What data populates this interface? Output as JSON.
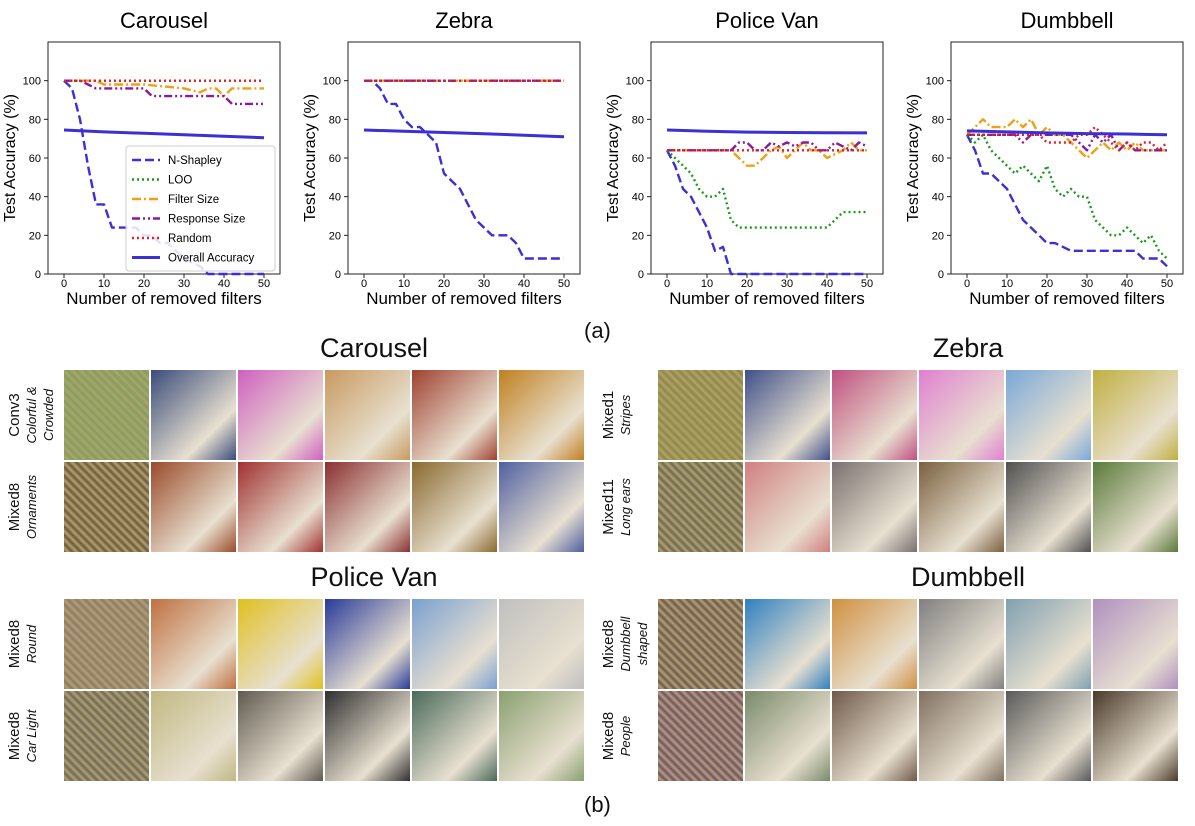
{
  "chart_data": [
    {
      "type": "line",
      "title": "Carousel",
      "xlabel": "Number of removed filters",
      "ylabel": "Test Accuracy (%)",
      "xlim": [
        -4,
        54
      ],
      "ylim": [
        0,
        120
      ],
      "xticks": [
        0,
        10,
        20,
        30,
        40,
        50
      ],
      "yticks": [
        0,
        20,
        40,
        60,
        80,
        100
      ],
      "legend": "lower-right",
      "series": [
        {
          "name": "N-Shapley",
          "style": "dashed",
          "color": "#3b2fd6",
          "x": [
            0,
            2,
            4,
            6,
            8,
            10,
            12,
            14,
            16,
            18,
            20,
            22,
            24,
            26,
            28,
            30,
            32,
            34,
            36,
            38,
            40,
            42,
            44,
            46,
            48,
            50
          ],
          "y": [
            100,
            96,
            80,
            56,
            36,
            36,
            24,
            24,
            24,
            24,
            20,
            20,
            16,
            16,
            12,
            8,
            6,
            4,
            0,
            0,
            0,
            0,
            0,
            0,
            0,
            0
          ]
        },
        {
          "name": "LOO",
          "style": "dotted",
          "color": "#1a9a1a",
          "x": [
            0,
            50
          ],
          "y": [
            100,
            100
          ]
        },
        {
          "name": "Filter Size",
          "style": "dashdot",
          "color": "#f0a010",
          "x": [
            0,
            2,
            4,
            6,
            8,
            10,
            20,
            30,
            34,
            36,
            38,
            40,
            42,
            44,
            46,
            48,
            50
          ],
          "y": [
            100,
            100,
            100,
            100,
            100,
            98,
            98,
            96,
            94,
            96,
            96,
            92,
            96,
            96,
            96,
            96,
            96
          ]
        },
        {
          "name": "Response Size",
          "style": "dashdotdot",
          "color": "#8a1a9a",
          "x": [
            0,
            4,
            6,
            8,
            10,
            20,
            22,
            24,
            26,
            30,
            36,
            40,
            42,
            44,
            46,
            48,
            50
          ],
          "y": [
            100,
            100,
            98,
            96,
            96,
            96,
            92,
            92,
            92,
            92,
            92,
            92,
            88,
            88,
            88,
            88,
            88
          ]
        },
        {
          "name": "Random",
          "style": "dotted",
          "color": "#e0202a",
          "x": [
            0,
            50
          ],
          "y": [
            100,
            100
          ]
        },
        {
          "name": "Overall Accuracy",
          "style": "solid",
          "color": "#3b2fd6",
          "x": [
            0,
            10,
            20,
            30,
            40,
            50
          ],
          "y": [
            74.5,
            73.5,
            72.8,
            72,
            71.2,
            70.5
          ]
        }
      ]
    },
    {
      "type": "line",
      "title": "Zebra",
      "xlabel": "Number of removed filters",
      "ylabel": "Test Accuracy (%)",
      "xlim": [
        -4,
        54
      ],
      "ylim": [
        0,
        120
      ],
      "xticks": [
        0,
        10,
        20,
        30,
        40,
        50
      ],
      "yticks": [
        0,
        20,
        40,
        60,
        80,
        100
      ],
      "series": [
        {
          "name": "N-Shapley",
          "style": "dashed",
          "color": "#3b2fd6",
          "x": [
            0,
            2,
            4,
            6,
            8,
            10,
            12,
            14,
            16,
            18,
            20,
            22,
            24,
            26,
            28,
            30,
            32,
            34,
            36,
            38,
            40,
            42,
            44,
            46,
            48,
            50
          ],
          "y": [
            100,
            100,
            96,
            88,
            88,
            80,
            76,
            76,
            72,
            68,
            52,
            48,
            44,
            36,
            28,
            24,
            20,
            20,
            20,
            16,
            8,
            8,
            8,
            8,
            8,
            8
          ]
        },
        {
          "name": "LOO",
          "style": "dotted",
          "color": "#1a9a1a",
          "x": [
            0,
            50
          ],
          "y": [
            100,
            100
          ]
        },
        {
          "name": "Filter Size",
          "style": "dashdot",
          "color": "#f0a010",
          "x": [
            0,
            50
          ],
          "y": [
            100,
            100
          ]
        },
        {
          "name": "Response Size",
          "style": "dashdotdot",
          "color": "#8a1a9a",
          "x": [
            0,
            50
          ],
          "y": [
            100,
            100
          ]
        },
        {
          "name": "Random",
          "style": "dotted",
          "color": "#e0202a",
          "x": [
            0,
            50
          ],
          "y": [
            100,
            100
          ]
        },
        {
          "name": "Overall Accuracy",
          "style": "solid",
          "color": "#3b2fd6",
          "x": [
            0,
            10,
            20,
            30,
            40,
            50
          ],
          "y": [
            74.5,
            73.8,
            73.2,
            72.5,
            71.8,
            71
          ]
        }
      ]
    },
    {
      "type": "line",
      "title": "Police Van",
      "xlabel": "Number of removed filters",
      "ylabel": "Test Accuracy (%)",
      "xlim": [
        -4,
        54
      ],
      "ylim": [
        0,
        120
      ],
      "xticks": [
        0,
        10,
        20,
        30,
        40,
        50
      ],
      "yticks": [
        0,
        20,
        40,
        60,
        80,
        100
      ],
      "series": [
        {
          "name": "N-Shapley",
          "style": "dashed",
          "color": "#3b2fd6",
          "x": [
            0,
            2,
            4,
            6,
            8,
            10,
            12,
            14,
            16,
            18,
            20,
            30,
            40,
            50
          ],
          "y": [
            64,
            56,
            44,
            40,
            32,
            24,
            12,
            14,
            0,
            0,
            0,
            0,
            0,
            0
          ]
        },
        {
          "name": "LOO",
          "style": "dotted",
          "color": "#1a9a1a",
          "x": [
            0,
            2,
            4,
            6,
            8,
            10,
            12,
            14,
            16,
            18,
            20,
            30,
            40,
            42,
            44,
            46,
            48,
            50
          ],
          "y": [
            64,
            60,
            56,
            52,
            44,
            40,
            40,
            44,
            28,
            24,
            24,
            24,
            24,
            28,
            32,
            32,
            32,
            32
          ]
        },
        {
          "name": "Filter Size",
          "style": "dashdot",
          "color": "#f0a010",
          "x": [
            0,
            10,
            16,
            18,
            20,
            22,
            24,
            26,
            28,
            30,
            32,
            34,
            36,
            38,
            40,
            42,
            44,
            46,
            48,
            50
          ],
          "y": [
            64,
            64,
            64,
            60,
            56,
            56,
            60,
            64,
            66,
            60,
            64,
            68,
            64,
            64,
            60,
            62,
            64,
            68,
            64,
            64
          ]
        },
        {
          "name": "Response Size",
          "style": "dashdotdot",
          "color": "#8a1a9a",
          "x": [
            0,
            10,
            16,
            18,
            20,
            22,
            24,
            26,
            28,
            30,
            32,
            34,
            36,
            38,
            40,
            42,
            44,
            46,
            48,
            50
          ],
          "y": [
            64,
            64,
            64,
            68,
            68,
            64,
            64,
            68,
            66,
            68,
            66,
            68,
            68,
            64,
            64,
            68,
            66,
            64,
            68,
            66
          ]
        },
        {
          "name": "Random",
          "style": "dotted",
          "color": "#e0202a",
          "x": [
            0,
            50
          ],
          "y": [
            64,
            64
          ]
        },
        {
          "name": "Overall Accuracy",
          "style": "solid",
          "color": "#3b2fd6",
          "x": [
            0,
            10,
            20,
            30,
            40,
            50
          ],
          "y": [
            74.5,
            73.8,
            73.4,
            73.2,
            73.1,
            73
          ]
        }
      ]
    },
    {
      "type": "line",
      "title": "Dumbbell",
      "xlabel": "Number of removed filters",
      "ylabel": "Test Accuracy (%)",
      "xlim": [
        -4,
        54
      ],
      "ylim": [
        0,
        120
      ],
      "xticks": [
        0,
        10,
        20,
        30,
        40,
        50
      ],
      "yticks": [
        0,
        20,
        40,
        60,
        80,
        100
      ],
      "series": [
        {
          "name": "N-Shapley",
          "style": "dashed",
          "color": "#3b2fd6",
          "x": [
            0,
            2,
            4,
            6,
            8,
            10,
            12,
            14,
            16,
            18,
            20,
            22,
            24,
            26,
            28,
            30,
            32,
            34,
            36,
            38,
            40,
            42,
            44,
            46,
            48,
            50
          ],
          "y": [
            72,
            64,
            52,
            52,
            48,
            44,
            36,
            28,
            24,
            20,
            16,
            16,
            14,
            12,
            12,
            12,
            12,
            12,
            12,
            12,
            12,
            12,
            8,
            8,
            8,
            4
          ]
        },
        {
          "name": "LOO",
          "style": "dotted",
          "color": "#1a9a1a",
          "x": [
            0,
            2,
            4,
            6,
            8,
            10,
            12,
            14,
            16,
            18,
            20,
            22,
            24,
            26,
            28,
            30,
            32,
            34,
            36,
            38,
            40,
            42,
            44,
            46,
            48,
            50
          ],
          "y": [
            72,
            68,
            72,
            64,
            60,
            56,
            52,
            56,
            52,
            48,
            56,
            44,
            40,
            44,
            40,
            40,
            28,
            24,
            20,
            20,
            24,
            20,
            16,
            20,
            12,
            8
          ]
        },
        {
          "name": "Filter Size",
          "style": "dashdot",
          "color": "#f0a010",
          "x": [
            0,
            2,
            4,
            6,
            8,
            10,
            12,
            14,
            16,
            18,
            20,
            22,
            24,
            26,
            28,
            30,
            32,
            34,
            36,
            38,
            40,
            42,
            44,
            46,
            48,
            50
          ],
          "y": [
            72,
            76,
            80,
            76,
            76,
            76,
            80,
            76,
            80,
            72,
            76,
            72,
            72,
            68,
            64,
            60,
            64,
            68,
            64,
            68,
            64,
            68,
            64,
            64,
            64,
            64
          ]
        },
        {
          "name": "Response Size",
          "style": "dashdotdot",
          "color": "#8a1a9a",
          "x": [
            0,
            2,
            4,
            6,
            8,
            10,
            12,
            14,
            16,
            18,
            20,
            22,
            24,
            26,
            28,
            30,
            32,
            34,
            36,
            38,
            40,
            42,
            44,
            46,
            48,
            50
          ],
          "y": [
            72,
            72,
            72,
            72,
            72,
            72,
            72,
            68,
            72,
            72,
            72,
            72,
            72,
            72,
            68,
            64,
            72,
            68,
            72,
            64,
            68,
            64,
            64,
            64,
            64,
            64
          ]
        },
        {
          "name": "Random",
          "style": "dotted",
          "color": "#e0202a",
          "x": [
            0,
            2,
            4,
            6,
            8,
            10,
            12,
            14,
            16,
            18,
            20,
            22,
            24,
            26,
            28,
            30,
            32,
            34,
            36,
            38,
            40,
            42,
            44,
            46,
            48,
            50
          ],
          "y": [
            72,
            72,
            72,
            72,
            72,
            72,
            72,
            72,
            72,
            72,
            68,
            68,
            68,
            68,
            72,
            72,
            76,
            72,
            68,
            64,
            68,
            64,
            68,
            68,
            64,
            68
          ]
        },
        {
          "name": "Overall Accuracy",
          "style": "solid",
          "color": "#3b2fd6",
          "x": [
            0,
            10,
            20,
            30,
            40,
            50
          ],
          "y": [
            74,
            73.5,
            73,
            72.6,
            72.4,
            72
          ]
        }
      ]
    }
  ],
  "labels": {
    "a": "(a)",
    "b": "(b)"
  },
  "groups": [
    {
      "title": "Carousel",
      "rows": [
        {
          "layer": "Conv3",
          "concept": "Colorful & Crowded",
          "swatches": [
            "#7aa25a",
            "#3a4c7a",
            "#d060c0",
            "#c89a60",
            "#a04030",
            "#c08020"
          ]
        },
        {
          "layer": "Mixed8",
          "concept": "Ornaments",
          "swatches": [
            "#6a5a3a",
            "#9a4a2a",
            "#a03030",
            "#8a3030",
            "#8a6a30",
            "#5060a0"
          ]
        }
      ]
    },
    {
      "title": "Zebra",
      "rows": [
        {
          "layer": "Mixed1",
          "concept": "Stripes",
          "swatches": [
            "#8a8a40",
            "#40508a",
            "#c05080",
            "#e080d0",
            "#7aa8d8",
            "#c0b040"
          ]
        },
        {
          "layer": "Mixed11",
          "concept": "Long ears",
          "swatches": [
            "#6a6a50",
            "#d08080",
            "#7a7070",
            "#7a6040",
            "#505050",
            "#5a7a3a"
          ]
        }
      ]
    },
    {
      "title": "Police Van",
      "rows": [
        {
          "layer": "Mixed8",
          "concept": "Round",
          "swatches": [
            "#8a7a6a",
            "#c07040",
            "#e0c020",
            "#2a3a9a",
            "#7aa0d0",
            "#c0c0c0"
          ]
        },
        {
          "layer": "Mixed8",
          "concept": "Car Light",
          "swatches": [
            "#6a6a5a",
            "#c0b880",
            "#605a50",
            "#303030",
            "#4a6a5a",
            "#8aa070"
          ]
        }
      ]
    },
    {
      "title": "Dumbbell",
      "rows": [
        {
          "layer": "Mixed8",
          "concept": "Dumbbell shaped",
          "swatches": [
            "#6a5a50",
            "#3080c0",
            "#d09040",
            "#808080",
            "#80a0b0",
            "#b090c0"
          ]
        },
        {
          "layer": "Mixed8",
          "concept": "People",
          "swatches": [
            "#705070",
            "#7a8a6a",
            "#705a4a",
            "#807060",
            "#5a5a5a",
            "#4a3a2a"
          ]
        }
      ]
    }
  ]
}
